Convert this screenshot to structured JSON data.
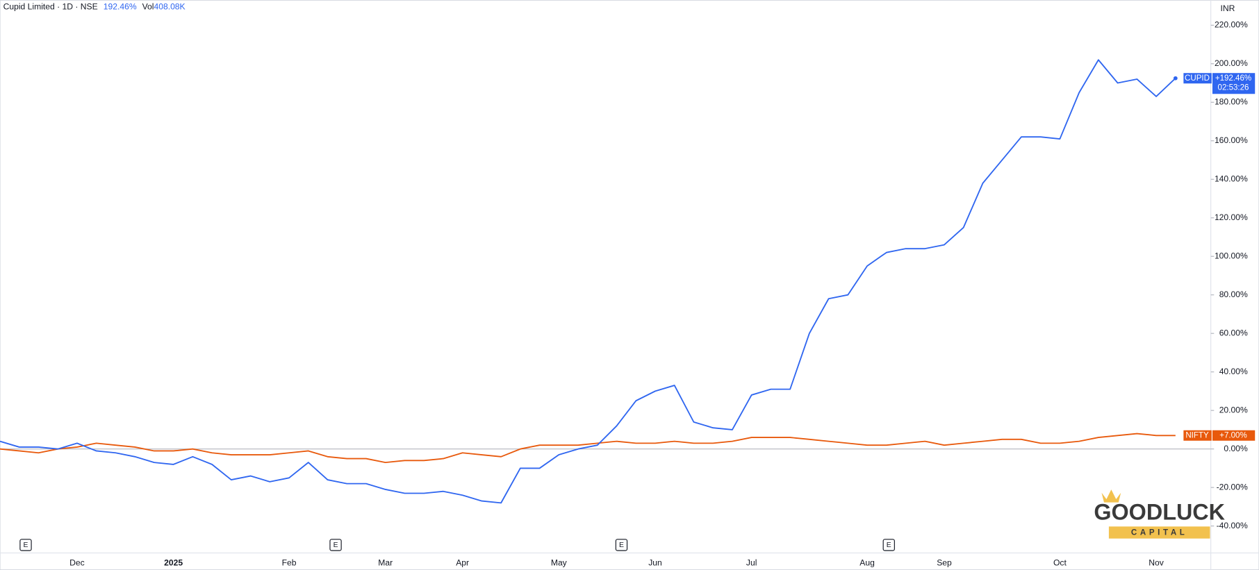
{
  "header": {
    "title": "Cupid Limited · 1D · NSE",
    "change": "192.46%",
    "vol_label": "Vol",
    "volume": "408.08K"
  },
  "watermark": {
    "line1": "GOODLUCK",
    "line2": "CAPITAL"
  },
  "earnings_marker": "E",
  "chart_data": {
    "type": "line",
    "currency": "INR",
    "categories": [
      null,
      null,
      null,
      null,
      "Dec",
      null,
      null,
      null,
      null,
      "2025",
      null,
      null,
      null,
      null,
      null,
      "Feb",
      null,
      null,
      null,
      null,
      "Mar",
      null,
      null,
      null,
      "Apr",
      null,
      null,
      null,
      null,
      "May",
      null,
      null,
      null,
      null,
      "Jun",
      null,
      null,
      null,
      null,
      "Jul",
      null,
      null,
      null,
      null,
      null,
      "Aug",
      null,
      null,
      null,
      "Sep",
      null,
      null,
      null,
      null,
      null,
      "Oct",
      null,
      null,
      null,
      null,
      "Nov",
      null
    ],
    "series": [
      {
        "name": "CUPID",
        "color": "#2f66f0",
        "time_label": "02:53:26",
        "values": [
          4,
          1,
          1,
          0,
          3,
          -1,
          -2,
          -4,
          -7,
          -8,
          -4,
          -8,
          -16,
          -14,
          -17,
          -15,
          -7,
          -16,
          -18,
          -18,
          -21,
          -23,
          -23,
          -22,
          -24,
          -27,
          -28,
          -10,
          -10,
          -3,
          0,
          2,
          12,
          25,
          30,
          33,
          14,
          11,
          10,
          28,
          31,
          31,
          60,
          78,
          80,
          95,
          102,
          104,
          104,
          106,
          115,
          138,
          150,
          162,
          162,
          161,
          185,
          202,
          190,
          192,
          183,
          192.46
        ],
        "value_labels": [
          null,
          null,
          null,
          null,
          null,
          null,
          null,
          null,
          null,
          null,
          null,
          null,
          null,
          null,
          null,
          null,
          null,
          null,
          null,
          null,
          null,
          null,
          null,
          null,
          null,
          null,
          null,
          null,
          null,
          null,
          null,
          null,
          null,
          null,
          null,
          null,
          null,
          null,
          null,
          null,
          null,
          null,
          null,
          null,
          null,
          null,
          null,
          null,
          null,
          null,
          null,
          null,
          null,
          null,
          null,
          null,
          null,
          null,
          null,
          null,
          null,
          "+192.46%"
        ]
      },
      {
        "name": "NIFTY",
        "color": "#e8590c",
        "values": [
          0,
          -1,
          -2,
          0,
          1,
          3,
          2,
          1,
          -1,
          -1,
          0,
          -2,
          -3,
          -3,
          -3,
          -2,
          -1,
          -4,
          -5,
          -5,
          -7,
          -6,
          -6,
          -5,
          -2,
          -3,
          -4,
          0,
          2,
          2,
          2,
          3,
          4,
          3,
          3,
          4,
          3,
          3,
          4,
          6,
          6,
          6,
          5,
          4,
          3,
          2,
          2,
          3,
          4,
          2,
          3,
          4,
          5,
          5,
          3,
          3,
          4,
          6,
          7,
          8,
          7,
          7.0
        ],
        "value_labels": [
          null,
          null,
          null,
          null,
          null,
          null,
          null,
          null,
          null,
          null,
          null,
          null,
          null,
          null,
          null,
          null,
          null,
          null,
          null,
          null,
          null,
          null,
          null,
          null,
          null,
          null,
          null,
          null,
          null,
          null,
          null,
          null,
          null,
          null,
          null,
          null,
          null,
          null,
          null,
          null,
          null,
          null,
          null,
          null,
          null,
          null,
          null,
          null,
          null,
          null,
          null,
          null,
          null,
          null,
          null,
          null,
          null,
          null,
          null,
          null,
          null,
          "+7.00%"
        ]
      }
    ],
    "ylim": [
      -54,
      233
    ],
    "yticks": [
      {
        "value": -40,
        "label": "-40.00%"
      },
      {
        "value": -20,
        "label": "-20.00%"
      },
      {
        "value": 0,
        "label": "0.00%"
      },
      {
        "value": 20,
        "label": "20.00%"
      },
      {
        "value": 40,
        "label": "40.00%"
      },
      {
        "value": 60,
        "label": "60.00%"
      },
      {
        "value": 80,
        "label": "80.00%"
      },
      {
        "value": 100,
        "label": "100.00%"
      },
      {
        "value": 120,
        "label": "120.00%"
      },
      {
        "value": 140,
        "label": "140.00%"
      },
      {
        "value": 160,
        "label": "160.00%"
      },
      {
        "value": 180,
        "label": "180.00%"
      },
      {
        "value": 200,
        "label": "200.00%"
      },
      {
        "value": 220,
        "label": "220.00%"
      }
    ],
    "grid": false
  }
}
